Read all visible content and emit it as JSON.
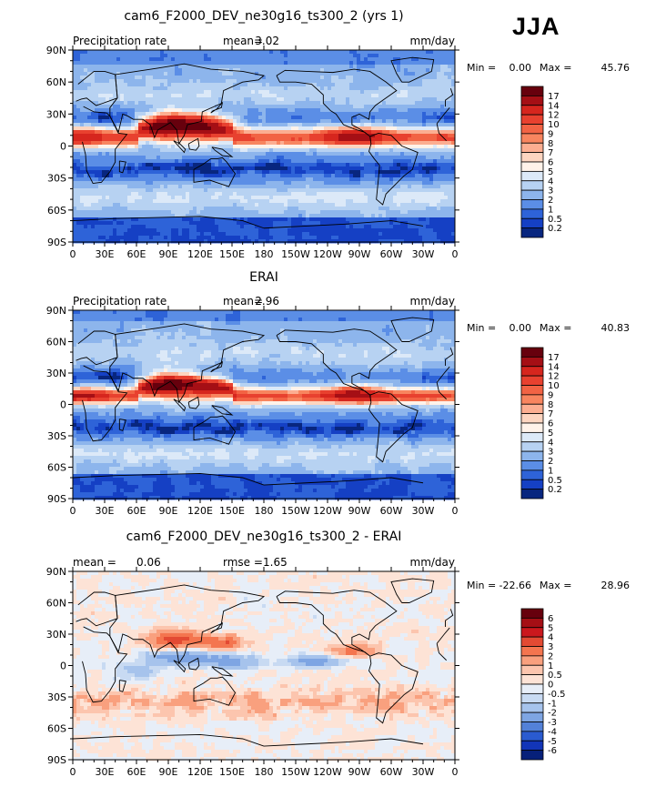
{
  "season": "JJA",
  "chart_data": [
    {
      "type": "heatmap",
      "title": "cam6_F2000_DEV_ne30g16_ts300_2 (yrs 1)",
      "header_left": "Precipitation rate",
      "stat1": {
        "label": "mean=",
        "value": "3.02"
      },
      "units": "mm/day",
      "min_max": {
        "min_label": "Min =",
        "min": "0.00",
        "max_label": "Max =",
        "max": "45.76"
      },
      "lat_ticks": [
        "90N",
        "60N",
        "30N",
        "0",
        "30S",
        "60S",
        "90S"
      ],
      "lon_ticks": [
        "0",
        "30E",
        "60E",
        "90E",
        "120E",
        "150E",
        "180",
        "150W",
        "120W",
        "90W",
        "60W",
        "30W",
        "0"
      ],
      "xlim": [
        0,
        360
      ],
      "ylim": [
        -90,
        90
      ],
      "colorbar": {
        "labels": [
          "17",
          "14",
          "12",
          "10",
          "9",
          "8",
          "7",
          "6",
          "5",
          "4",
          "3",
          "2",
          "1",
          "0.5",
          "0.2"
        ],
        "colors": [
          "#67000d",
          "#a50f15",
          "#d6261e",
          "#e8412f",
          "#f26344",
          "#f8855f",
          "#fcae91",
          "#fdd5c0",
          "#fff2e9",
          "#dce9f8",
          "#b7d2f2",
          "#8db5ec",
          "#5b8ee6",
          "#2e63d8",
          "#1540c4",
          "#08267f"
        ]
      },
      "field": "precip_model"
    },
    {
      "type": "heatmap",
      "title": "ERAI",
      "header_left": "Precipitation rate",
      "stat1": {
        "label": "mean=",
        "value": "2.96"
      },
      "units": "mm/day",
      "min_max": {
        "min_label": "Min =",
        "min": "0.00",
        "max_label": "Max =",
        "max": "40.83"
      },
      "lat_ticks": [
        "90N",
        "60N",
        "30N",
        "0",
        "30S",
        "60S",
        "90S"
      ],
      "lon_ticks": [
        "0",
        "30E",
        "60E",
        "90E",
        "120E",
        "150E",
        "180",
        "150W",
        "120W",
        "90W",
        "60W",
        "30W",
        "0"
      ],
      "xlim": [
        0,
        360
      ],
      "ylim": [
        -90,
        90
      ],
      "colorbar": {
        "labels": [
          "17",
          "14",
          "12",
          "10",
          "9",
          "8",
          "7",
          "6",
          "5",
          "4",
          "3",
          "2",
          "1",
          "0.5",
          "0.2"
        ],
        "colors": [
          "#67000d",
          "#a50f15",
          "#d6261e",
          "#e8412f",
          "#f26344",
          "#f8855f",
          "#fcae91",
          "#fdd5c0",
          "#fff2e9",
          "#dce9f8",
          "#b7d2f2",
          "#8db5ec",
          "#5b8ee6",
          "#2e63d8",
          "#1540c4",
          "#08267f"
        ]
      },
      "field": "precip_obs"
    },
    {
      "type": "heatmap",
      "title": "cam6_F2000_DEV_ne30g16_ts300_2 - ERAI",
      "header_left": "",
      "stat1": {
        "label": "mean =",
        "value": "0.06"
      },
      "stat2": {
        "label": "rmse =",
        "value": "1.65"
      },
      "units": "mm/day",
      "min_max": {
        "min_label": "Min =",
        "min": "-22.66",
        "max_label": "Max =",
        "max": "28.96"
      },
      "lat_ticks": [
        "90N",
        "60N",
        "30N",
        "0",
        "30S",
        "60S",
        "90S"
      ],
      "lon_ticks": [
        "0",
        "30E",
        "60E",
        "90E",
        "120E",
        "150E",
        "180",
        "150W",
        "120W",
        "90W",
        "60W",
        "30W",
        "0"
      ],
      "xlim": [
        0,
        360
      ],
      "ylim": [
        -90,
        90
      ],
      "colorbar": {
        "labels": [
          "6",
          "5",
          "4",
          "3",
          "2",
          "1",
          "0.5",
          "0",
          "-0.5",
          "-1",
          "-2",
          "-3",
          "-4",
          "-5",
          "-6"
        ],
        "colors": [
          "#67000d",
          "#a50f15",
          "#cb181d",
          "#e34a33",
          "#f4754f",
          "#f9a07e",
          "#fcc5ae",
          "#fde3d6",
          "#e7eef8",
          "#c8daf2",
          "#a6c3ec",
          "#7ea5e3",
          "#5381d8",
          "#2a5bd0",
          "#1235b8",
          "#06207a"
        ]
      },
      "field": "precip_diff"
    }
  ]
}
